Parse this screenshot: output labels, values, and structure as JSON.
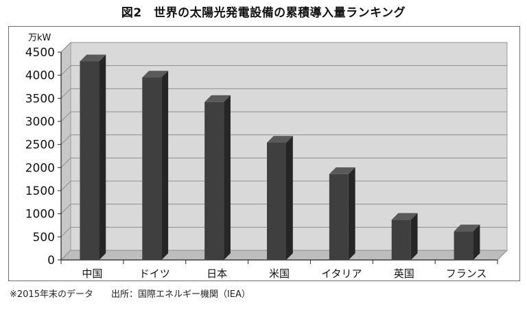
{
  "title": "図2　世界の太陽光発電設備の累積導入量ランキング",
  "footnote": "※2015年末のデータ　　出所：国際エネルギー機関（IEA）",
  "chart_data": {
    "type": "bar",
    "y_unit": "万kW",
    "categories": [
      "中国",
      "ドイツ",
      "日本",
      "米国",
      "イタリア",
      "英国",
      "フランス"
    ],
    "values": [
      4300,
      3950,
      3420,
      2540,
      1860,
      870,
      620
    ],
    "ylim": [
      0,
      4500
    ],
    "yticks": [
      0,
      500,
      1000,
      1500,
      2000,
      2500,
      3000,
      3500,
      4000,
      4500
    ],
    "grid": true,
    "legend": "none",
    "style": "3d-column",
    "colors": {
      "bar_front": "#3f3f3f",
      "bar_side": "#262626",
      "bar_top": "#5a5a5a",
      "back_wall": "#d9d9d9",
      "floor": "#bdbdbd"
    }
  }
}
